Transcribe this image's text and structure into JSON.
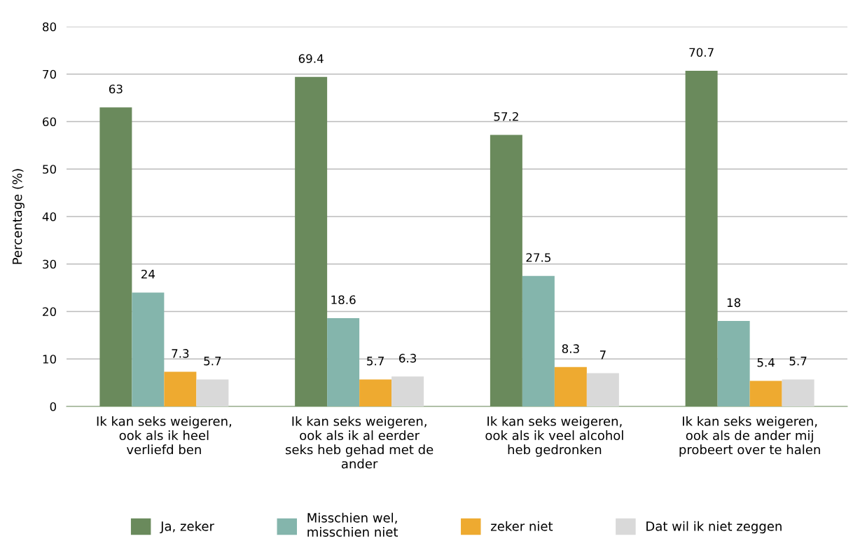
{
  "chart_data": {
    "type": "bar",
    "ylabel": "Percentage (%)",
    "categories": [
      "Ik kan seks weigeren, ook als ik heel verliefd ben",
      "Ik kan seks weigeren, ook als ik al eerder seks heb gehad met de ander",
      "Ik kan seks weigeren, ook als ik veel alcohol heb gedronken",
      "Ik kan seks weigeren, ook als de ander mij probeert over te halen"
    ],
    "series": [
      {
        "name": "Ja, zeker",
        "color": "#6a8a5c",
        "values": [
          63,
          69.4,
          57.2,
          70.7
        ]
      },
      {
        "name": "Misschien wel, misschien niet",
        "color": "#84b5ac",
        "values": [
          24,
          18.6,
          27.5,
          18
        ]
      },
      {
        "name": "zeker niet",
        "color": "#eeaa30",
        "values": [
          7.3,
          5.7,
          8.3,
          5.4
        ]
      },
      {
        "name": "Dat wil ik niet zeggen",
        "color": "#d9d9d9",
        "values": [
          5.7,
          6.3,
          7,
          5.7
        ]
      }
    ],
    "ylim": [
      0,
      80
    ],
    "yticks": [
      0,
      10,
      20,
      30,
      40,
      50,
      60,
      70,
      80
    ],
    "grid": "y",
    "legend": "bottom",
    "data_labels": true
  }
}
